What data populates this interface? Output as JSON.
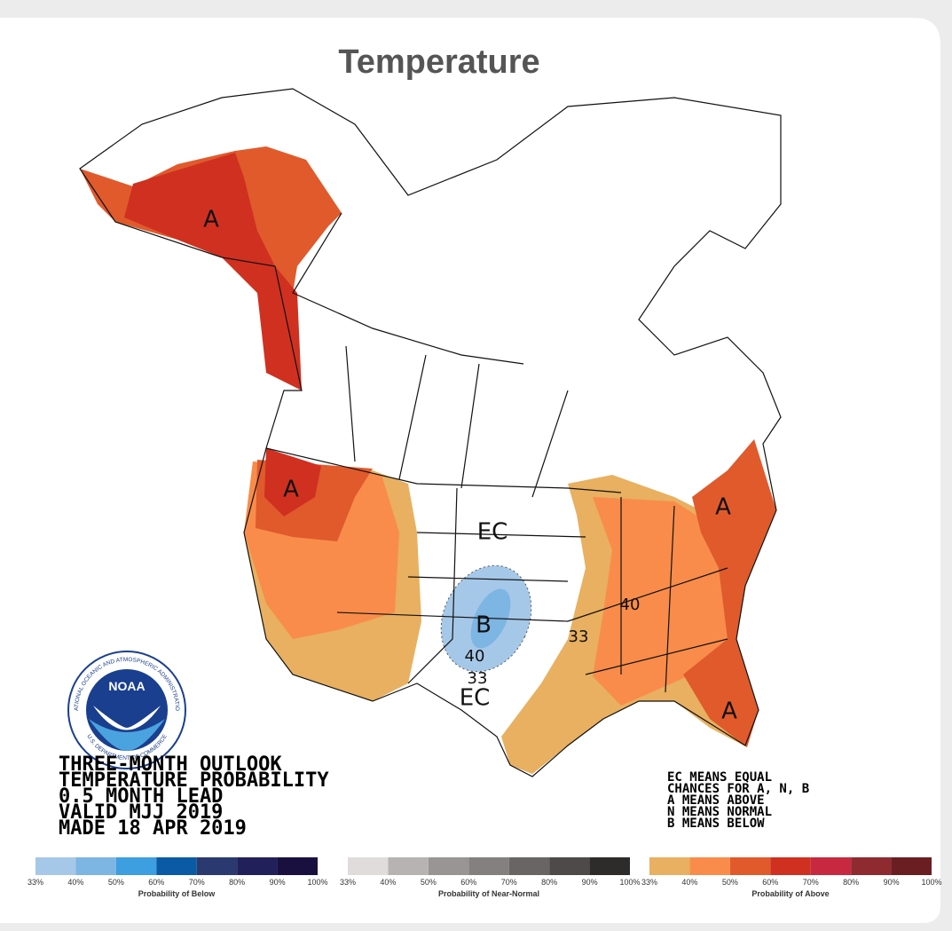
{
  "title": "Temperature",
  "map_labels": [
    "A",
    "A",
    "EC",
    "B",
    "40",
    "33",
    "EC",
    "33",
    "40",
    "A",
    "A"
  ],
  "outlook_text": [
    "THREE-MONTH OUTLOOK",
    "TEMPERATURE PROBABILITY",
    "0.5 MONTH LEAD",
    "VALID MJJ 2019",
    "MADE 18 APR 2019"
  ],
  "key_text": [
    "EC MEANS EQUAL",
    "CHANCES FOR A, N, B",
    "A MEANS ABOVE",
    "N MEANS NORMAL",
    "B MEANS BELOW"
  ],
  "logo": {
    "name": "NOAA",
    "ring_top": "NATIONAL OCEANIC AND ATMOSPHERIC ADMINISTRATION",
    "ring_bottom": "U.S. DEPARTMENT OF COMMERCE"
  },
  "legends": [
    {
      "title": "Probability of Below",
      "labels": [
        "33%",
        "40%",
        "50%",
        "60%",
        "70%",
        "80%",
        "90%",
        "100%"
      ],
      "colors": [
        "#a6c8e8",
        "#7db5e3",
        "#3d9ee0",
        "#0a5aa6",
        "#2a3a70",
        "#22205a",
        "#1a1040"
      ]
    },
    {
      "title": "Probability of Near-Normal",
      "labels": [
        "33%",
        "40%",
        "50%",
        "60%",
        "70%",
        "80%",
        "90%",
        "100%"
      ],
      "colors": [
        "#e0dcdc",
        "#b8b3b3",
        "#9a9595",
        "#858080",
        "#6a6565",
        "#4e4a4a",
        "#2e2b2b"
      ]
    },
    {
      "title": "Probability of Above",
      "labels": [
        "33%",
        "40%",
        "50%",
        "60%",
        "70%",
        "80%",
        "90%",
        "100%"
      ],
      "colors": [
        "#e8b060",
        "#f98c4a",
        "#e05a2c",
        "#d03020",
        "#c82840",
        "#8e2a30",
        "#6a1e22"
      ]
    }
  ]
}
